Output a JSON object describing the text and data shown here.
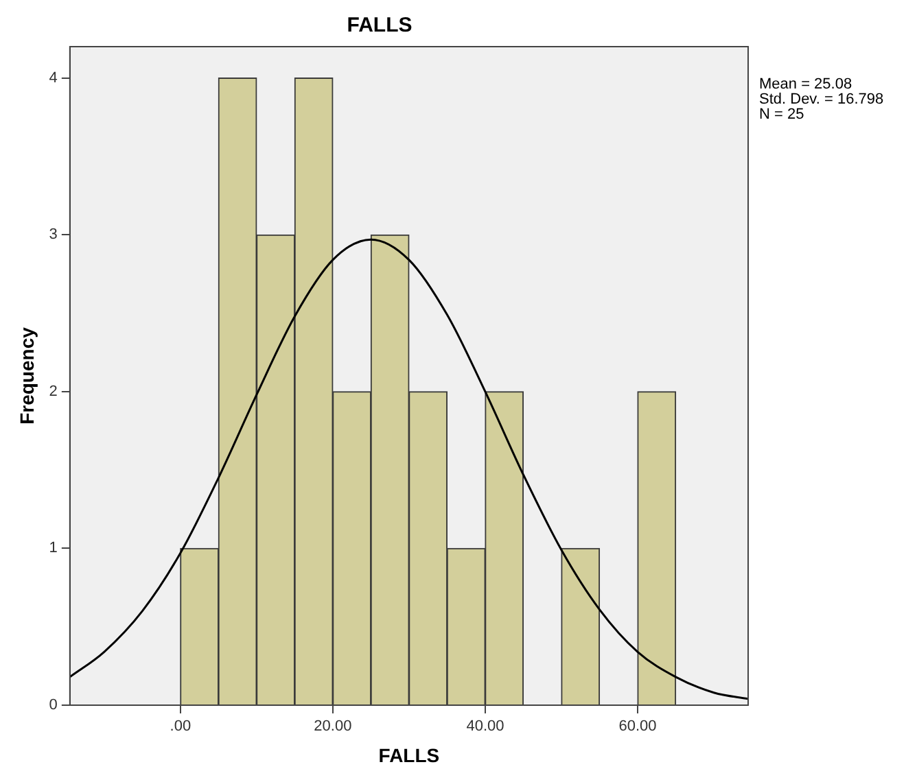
{
  "chart_data": {
    "type": "histogram",
    "title": "FALLS",
    "xlabel": "FALLS",
    "ylabel": "Frequency",
    "bins": [
      0,
      5,
      10,
      15,
      20,
      25,
      30,
      35,
      40,
      45,
      50,
      55,
      60,
      65
    ],
    "values": [
      1,
      4,
      3,
      4,
      2,
      3,
      2,
      1,
      2,
      0,
      1,
      0,
      2
    ],
    "color": "#d3cf9b",
    "series": [
      {
        "type": "line",
        "color": "#000000",
        "x": [
          -14.5,
          -10,
          -5,
          0,
          5,
          10,
          15,
          20,
          25,
          30,
          35,
          40,
          45,
          50,
          55,
          60,
          65,
          70,
          74.5
        ],
        "values": [
          0.18,
          0.34,
          0.6,
          0.97,
          1.45,
          1.98,
          2.48,
          2.84,
          2.97,
          2.84,
          2.49,
          2.0,
          1.47,
          0.99,
          0.61,
          0.34,
          0.18,
          0.08,
          0.04
        ]
      }
    ],
    "xlim": [
      -14.5,
      74.5
    ],
    "xticks": [
      {
        "value": 0,
        "label": ".00"
      },
      {
        "value": 20,
        "label": "20.00"
      },
      {
        "value": 40,
        "label": "40.00"
      },
      {
        "value": 60,
        "label": "60.00"
      }
    ],
    "ylim": [
      0,
      4.2
    ],
    "yticks": [
      0,
      1,
      2,
      3,
      4
    ],
    "grid": false,
    "legend": false,
    "annotations": [
      "Mean = 25.08",
      "Std. Dev. = 16.798",
      "N = 25"
    ]
  }
}
